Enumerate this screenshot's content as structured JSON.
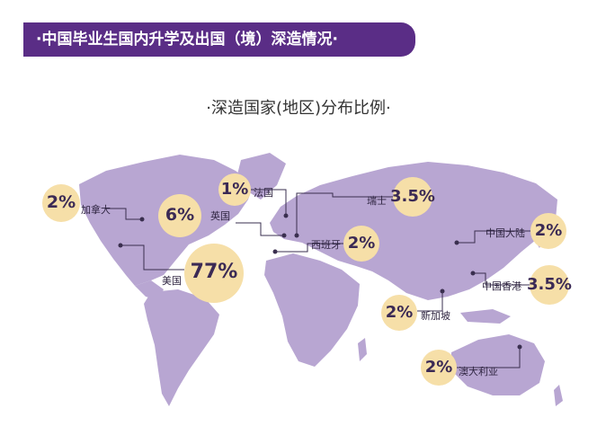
{
  "header": {
    "title": "·中国毕业生国内升学及出国（境）深造情况·"
  },
  "subtitle": "·深造国家(地区)分布比例·",
  "colors": {
    "banner": "#5a2d86",
    "land": "#b8a6d2",
    "bubble": "#f6dfa8",
    "leader": "#3a2f4f",
    "text": "#3b2a55"
  },
  "countries": [
    {
      "key": "canada",
      "label": "加拿大",
      "pct": "2%"
    },
    {
      "key": "usa",
      "label": "美国",
      "pct": "77%"
    },
    {
      "key": "uk",
      "label": "英国",
      "pct": "6%"
    },
    {
      "key": "france",
      "label": "法国",
      "pct": "1%"
    },
    {
      "key": "switzerland",
      "label": "瑞士",
      "pct": "3.5%"
    },
    {
      "key": "spain",
      "label": "西班牙",
      "pct": "2%"
    },
    {
      "key": "mainland",
      "label": "中国大陆",
      "pct": "2%"
    },
    {
      "key": "hongkong",
      "label": "中国香港",
      "pct": "3.5%"
    },
    {
      "key": "singapore",
      "label": "新加坡",
      "pct": "2%"
    },
    {
      "key": "australia",
      "label": "澳大利亚",
      "pct": "2%"
    }
  ]
}
